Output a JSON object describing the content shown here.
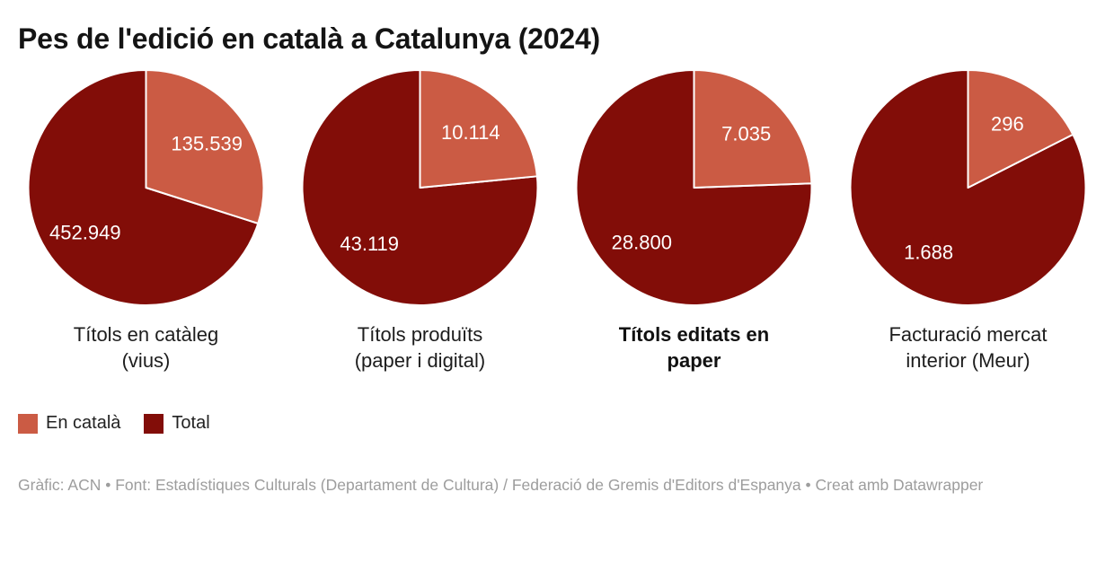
{
  "title": "Pes de l'edició en català a Catalunya (2024)",
  "colors": {
    "en_catala": "#cb5b44",
    "total": "#820d08",
    "value_label_text": "#ffffff"
  },
  "legend": {
    "items": [
      {
        "label": "En català",
        "color_key": "en_catala"
      },
      {
        "label": "Total",
        "color_key": "total"
      }
    ]
  },
  "footer": {
    "text": "Gràfic: ACN • Font: Estadístiques Culturals (Departament de Cultura) / Federació de Gremis d'Editors d'Espanya • Creat amb Datawrapper"
  },
  "chart_data": {
    "type": "pie",
    "title": "Pes de l'edició en català a Catalunya (2024)",
    "legend_position": "bottom-left",
    "series_labels": [
      "En català",
      "Total"
    ],
    "slice_start": "top-clockwise",
    "pies": [
      {
        "category": "Títols en catàleg (vius)",
        "category_lines": [
          "Títols en catàleg",
          "(vius)"
        ],
        "category_emphasis": false,
        "en_catala": 135539,
        "total": 452949,
        "en_catala_display": "135.539",
        "total_display": "452.949"
      },
      {
        "category": "Títols produïts (paper i digital)",
        "category_lines": [
          "Títols produïts",
          "(paper i digital)"
        ],
        "category_emphasis": false,
        "en_catala": 10114,
        "total": 43119,
        "en_catala_display": "10.114",
        "total_display": "43.119"
      },
      {
        "category": "Títols editats en paper",
        "category_lines": [
          "Títols editats en",
          "paper"
        ],
        "category_emphasis": true,
        "en_catala": 7035,
        "total": 28800,
        "en_catala_display": "7.035",
        "total_display": "28.800"
      },
      {
        "category": "Facturació mercat interior (Meur)",
        "category_lines": [
          "Facturació mercat",
          "interior (Meur)"
        ],
        "category_emphasis": false,
        "en_catala": 296,
        "total": 1688,
        "en_catala_display": "296",
        "total_display": "1.688"
      }
    ]
  }
}
